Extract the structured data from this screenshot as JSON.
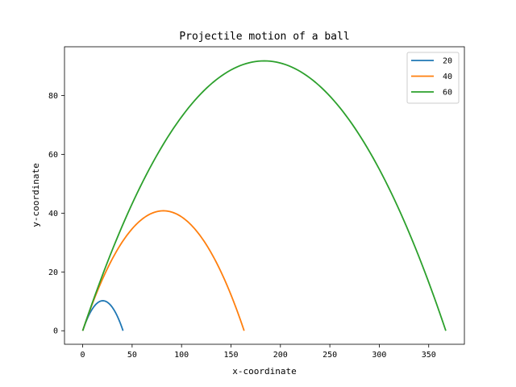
{
  "chart_data": {
    "type": "line",
    "title": "Projectile motion of a ball",
    "xlabel": "x-coordinate",
    "ylabel": "y-coordinate",
    "xlim": [
      -18.4,
      386.1
    ],
    "ylim": [
      -4.6,
      96.6
    ],
    "xticks": [
      0,
      50,
      100,
      150,
      200,
      250,
      300,
      350
    ],
    "yticks": [
      0,
      20,
      40,
      60,
      80
    ],
    "grid": false,
    "legend_position": "top-right",
    "series": [
      {
        "name": "20",
        "color": "#1f77b4",
        "range": 40.8,
        "max_height": 10.2
      },
      {
        "name": "40",
        "color": "#ff7f0e",
        "range": 163.3,
        "max_height": 40.8
      },
      {
        "name": "60",
        "color": "#2ca02c",
        "range": 367.3,
        "max_height": 91.8
      }
    ]
  }
}
